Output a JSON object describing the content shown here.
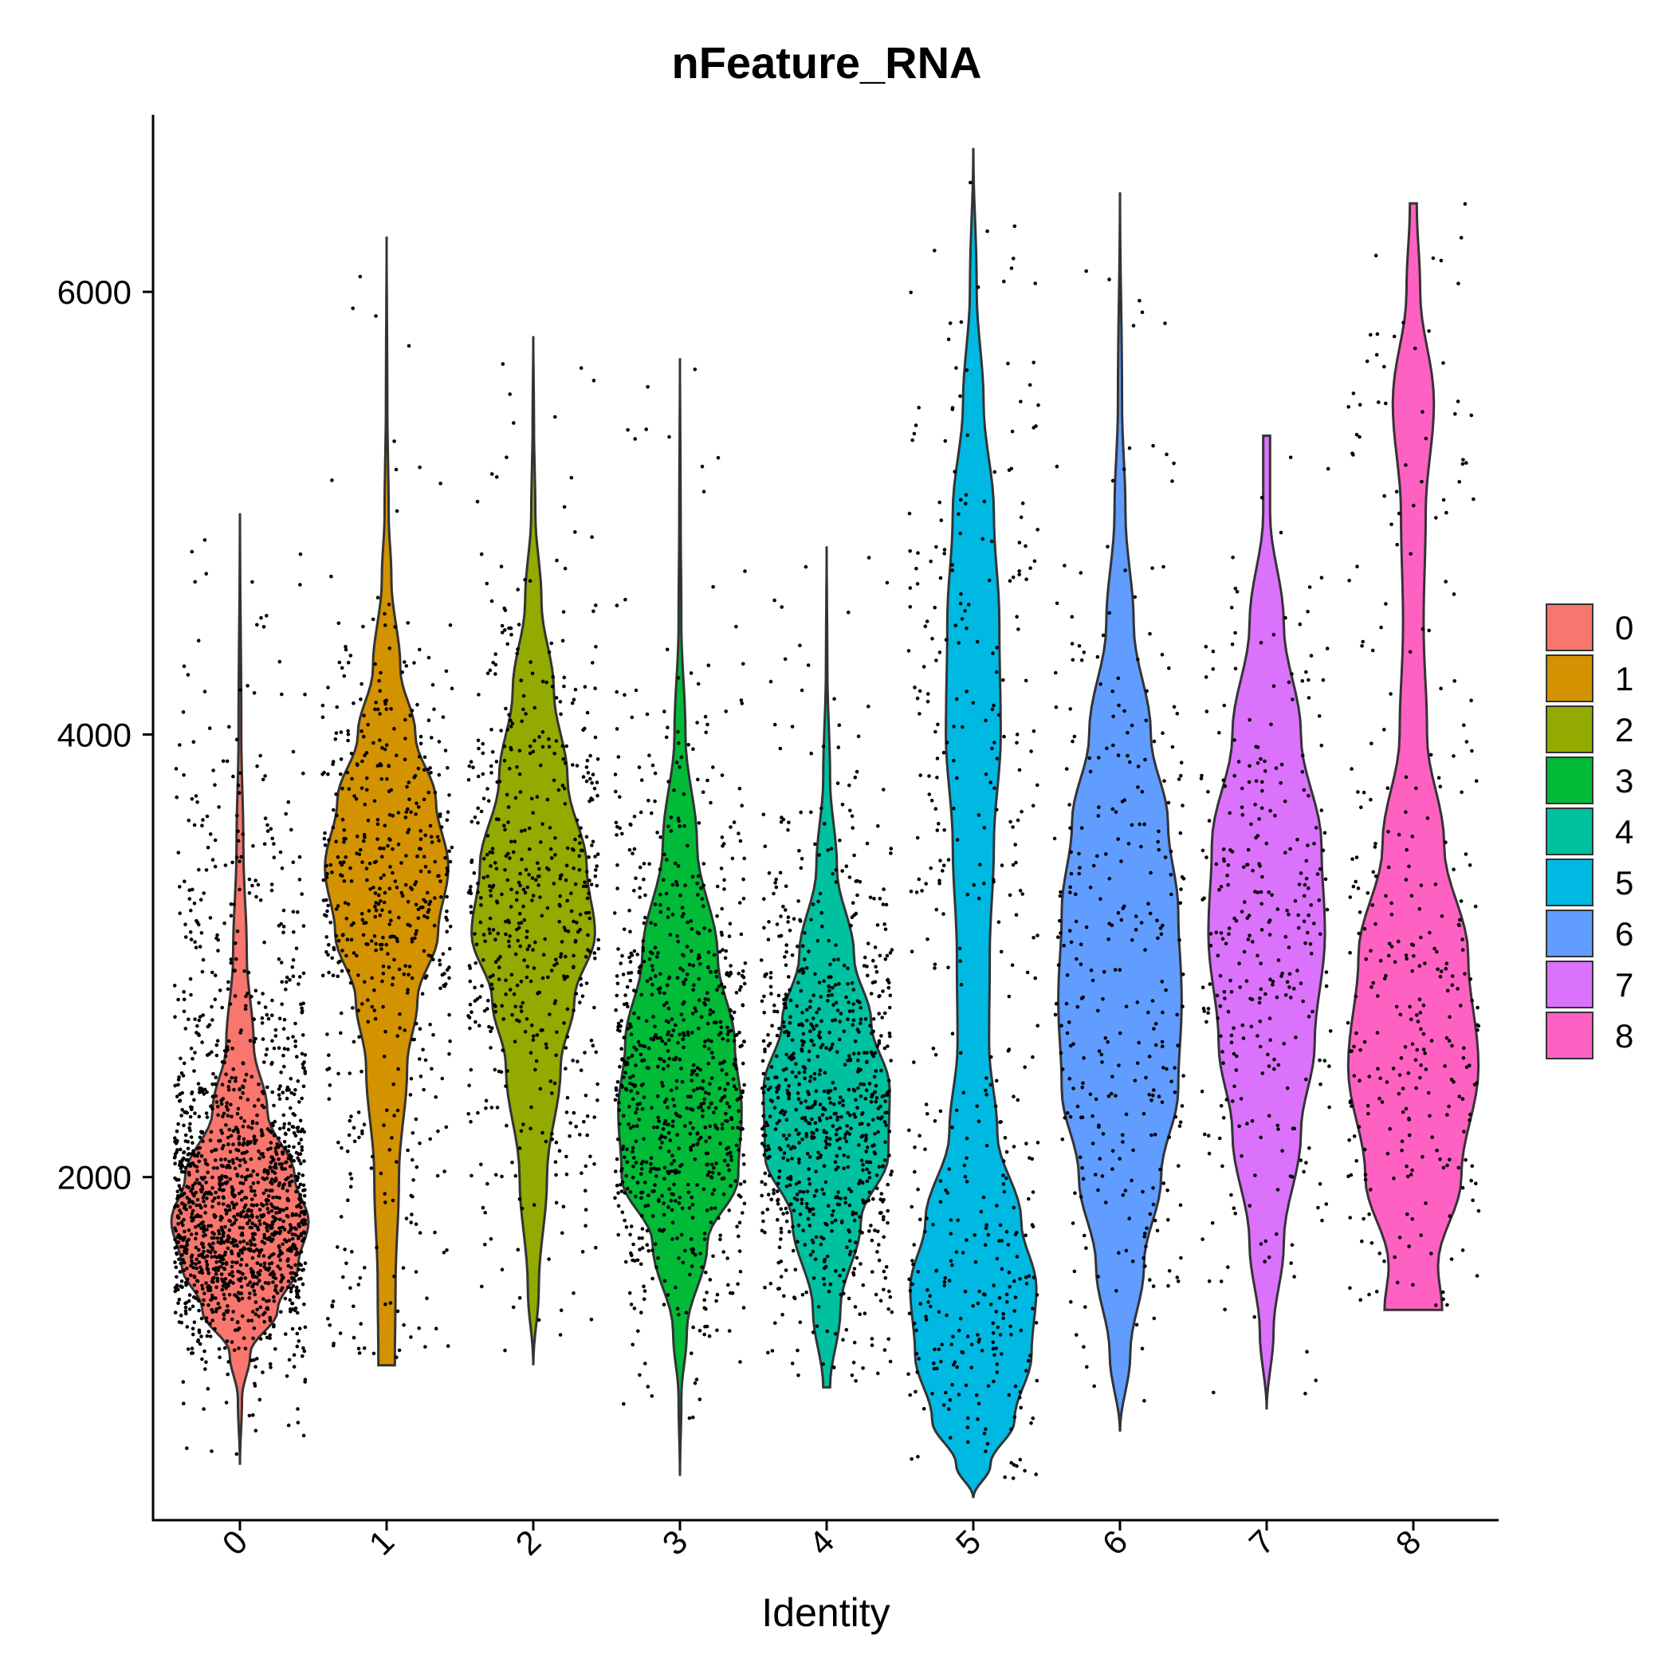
{
  "chart_data": {
    "type": "violin",
    "title": "nFeature_RNA",
    "xlabel": "Identity",
    "ylabel": "",
    "categories": [
      "0",
      "1",
      "2",
      "3",
      "4",
      "5",
      "6",
      "7",
      "8"
    ],
    "ylim": [
      450,
      6800
    ],
    "yticks": [
      2000,
      4000,
      6000
    ],
    "legend_position": "right",
    "grid": false,
    "series": [
      {
        "name": "0",
        "color": "#F8766D",
        "min": 700,
        "max": 5000,
        "median": 1900,
        "density": [
          [
            700,
            0.0
          ],
          [
            1000,
            0.03
          ],
          [
            1200,
            0.15
          ],
          [
            1400,
            0.55
          ],
          [
            1600,
            0.85
          ],
          [
            1800,
            1.0
          ],
          [
            2000,
            0.8
          ],
          [
            2300,
            0.4
          ],
          [
            2600,
            0.2
          ],
          [
            3000,
            0.1
          ],
          [
            3500,
            0.05
          ],
          [
            4000,
            0.02
          ],
          [
            5000,
            0.0
          ]
        ]
      },
      {
        "name": "1",
        "color": "#D39200",
        "min": 1150,
        "max": 6250,
        "median": 3350,
        "density": [
          [
            1150,
            0.12
          ],
          [
            1500,
            0.13
          ],
          [
            2000,
            0.18
          ],
          [
            2500,
            0.3
          ],
          [
            2800,
            0.45
          ],
          [
            3100,
            0.75
          ],
          [
            3400,
            0.9
          ],
          [
            3700,
            0.72
          ],
          [
            4000,
            0.42
          ],
          [
            4300,
            0.2
          ],
          [
            4700,
            0.07
          ],
          [
            5000,
            0.03
          ],
          [
            5500,
            0.01
          ],
          [
            6250,
            0.0
          ]
        ]
      },
      {
        "name": "2",
        "color": "#93AA00",
        "min": 1150,
        "max": 5800,
        "median": 3000,
        "density": [
          [
            1150,
            0.0
          ],
          [
            1500,
            0.08
          ],
          [
            2000,
            0.2
          ],
          [
            2500,
            0.4
          ],
          [
            2800,
            0.6
          ],
          [
            3100,
            0.9
          ],
          [
            3400,
            0.78
          ],
          [
            3800,
            0.5
          ],
          [
            4200,
            0.3
          ],
          [
            4600,
            0.12
          ],
          [
            5000,
            0.03
          ],
          [
            5400,
            0.01
          ],
          [
            5800,
            0.0
          ]
        ]
      },
      {
        "name": "3",
        "color": "#00BA38",
        "min": 650,
        "max": 5700,
        "median": 2400,
        "density": [
          [
            650,
            0.0
          ],
          [
            1000,
            0.02
          ],
          [
            1300,
            0.1
          ],
          [
            1700,
            0.4
          ],
          [
            2000,
            0.85
          ],
          [
            2300,
            0.9
          ],
          [
            2600,
            0.8
          ],
          [
            3000,
            0.55
          ],
          [
            3500,
            0.25
          ],
          [
            4000,
            0.08
          ],
          [
            4500,
            0.02
          ],
          [
            5000,
            0.01
          ],
          [
            5700,
            0.0
          ]
        ]
      },
      {
        "name": "4",
        "color": "#00C19F",
        "min": 1050,
        "max": 4850,
        "median": 2300,
        "density": [
          [
            1050,
            0.05
          ],
          [
            1400,
            0.2
          ],
          [
            1800,
            0.5
          ],
          [
            2100,
            0.9
          ],
          [
            2400,
            0.92
          ],
          [
            2700,
            0.65
          ],
          [
            3000,
            0.4
          ],
          [
            3400,
            0.15
          ],
          [
            3800,
            0.05
          ],
          [
            4300,
            0.01
          ],
          [
            4850,
            0.0
          ]
        ]
      },
      {
        "name": "5",
        "color": "#00B9E3",
        "min": 550,
        "max": 6650,
        "median": 1600,
        "density": [
          [
            550,
            0.0
          ],
          [
            700,
            0.25
          ],
          [
            900,
            0.6
          ],
          [
            1200,
            0.85
          ],
          [
            1500,
            0.92
          ],
          [
            1800,
            0.7
          ],
          [
            2200,
            0.35
          ],
          [
            2600,
            0.23
          ],
          [
            3000,
            0.24
          ],
          [
            3500,
            0.3
          ],
          [
            4000,
            0.4
          ],
          [
            4500,
            0.38
          ],
          [
            5000,
            0.3
          ],
          [
            5500,
            0.15
          ],
          [
            6000,
            0.05
          ],
          [
            6650,
            0.0
          ]
        ]
      },
      {
        "name": "6",
        "color": "#619CFF",
        "min": 850,
        "max": 6450,
        "median": 2800,
        "density": [
          [
            850,
            0.0
          ],
          [
            1200,
            0.15
          ],
          [
            1600,
            0.35
          ],
          [
            2000,
            0.6
          ],
          [
            2400,
            0.85
          ],
          [
            2800,
            0.9
          ],
          [
            3200,
            0.85
          ],
          [
            3600,
            0.7
          ],
          [
            4000,
            0.45
          ],
          [
            4500,
            0.2
          ],
          [
            5000,
            0.08
          ],
          [
            5500,
            0.03
          ],
          [
            6450,
            0.0
          ]
        ]
      },
      {
        "name": "7",
        "color": "#DB72FB",
        "min": 950,
        "max": 5350,
        "median": 3100,
        "density": [
          [
            950,
            0.0
          ],
          [
            1300,
            0.1
          ],
          [
            1700,
            0.25
          ],
          [
            2200,
            0.5
          ],
          [
            2600,
            0.7
          ],
          [
            3100,
            0.85
          ],
          [
            3500,
            0.8
          ],
          [
            4000,
            0.5
          ],
          [
            4500,
            0.25
          ],
          [
            5000,
            0.05
          ],
          [
            5350,
            0.05
          ]
        ]
      },
      {
        "name": "8",
        "color": "#FF61C3",
        "min": 1400,
        "max": 6400,
        "median": 2800,
        "density": [
          [
            1400,
            0.42
          ],
          [
            1600,
            0.36
          ],
          [
            2000,
            0.7
          ],
          [
            2500,
            0.95
          ],
          [
            3000,
            0.8
          ],
          [
            3500,
            0.45
          ],
          [
            4000,
            0.2
          ],
          [
            4500,
            0.15
          ],
          [
            5000,
            0.18
          ],
          [
            5500,
            0.3
          ],
          [
            6000,
            0.1
          ],
          [
            6400,
            0.05
          ]
        ]
      }
    ]
  }
}
